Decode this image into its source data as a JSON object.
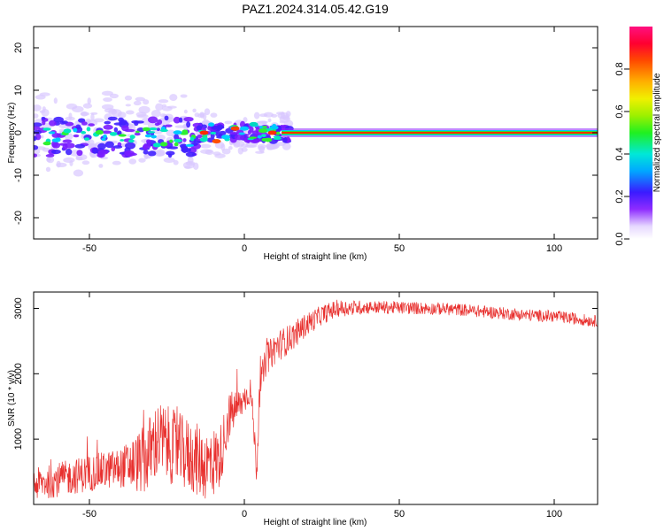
{
  "title": "PAZ1.2024.314.05.42.G19",
  "colors": {
    "snr_line": "#e8302e",
    "axis": "#000000"
  },
  "chart_data": [
    {
      "type": "heatmap",
      "xlabel": "Height of straight line (km)",
      "ylabel": "Frequency (Hz)",
      "xlim": [
        -68,
        114
      ],
      "ylim": [
        -25,
        25
      ],
      "xticks": [
        -50,
        0,
        50,
        100
      ],
      "yticks": [
        -20,
        -10,
        0,
        10,
        20
      ],
      "colormap": "rainbow (purple to red)",
      "colorbar": {
        "label": "Normalized spectral amplitude",
        "range": [
          0,
          1
        ],
        "ticks": [
          "0.0",
          "0.2",
          "0.4",
          "0.6",
          "0.8"
        ]
      },
      "description_points": {
        "ridge_center_hz": 0,
        "scatter_region_km": [
          -68,
          15
        ],
        "steady_region_km": [
          15,
          114
        ]
      }
    },
    {
      "type": "line",
      "xlabel": "Height of straight line (km)",
      "ylabel": "SNR (10 * v/v)",
      "xlim": [
        -68,
        114
      ],
      "ylim": [
        0,
        3250
      ],
      "xticks": [
        -50,
        0,
        50,
        100
      ],
      "yticks": [
        1000,
        2000,
        3000
      ],
      "series": [
        {
          "envelope": [
            [
              -68,
              300
            ],
            [
              -60,
              380
            ],
            [
              -50,
              480
            ],
            [
              -40,
              560
            ],
            [
              -32,
              680
            ],
            [
              -28,
              1000
            ],
            [
              -24,
              900
            ],
            [
              -20,
              800
            ],
            [
              -16,
              700
            ],
            [
              -12,
              600
            ],
            [
              -8,
              700
            ],
            [
              -5,
              1350
            ],
            [
              -2,
              1500
            ],
            [
              0,
              1600
            ],
            [
              2,
              1750
            ],
            [
              3,
              1200
            ],
            [
              4,
              500
            ],
            [
              5,
              1800
            ],
            [
              7,
              2200
            ],
            [
              10,
              2400
            ],
            [
              15,
              2550
            ],
            [
              20,
              2750
            ],
            [
              25,
              2900
            ],
            [
              30,
              3000
            ],
            [
              40,
              3020
            ],
            [
              50,
              3010
            ],
            [
              60,
              3000
            ],
            [
              70,
              2980
            ],
            [
              80,
              2940
            ],
            [
              90,
              2900
            ],
            [
              100,
              2880
            ],
            [
              114,
              2800
            ]
          ],
          "noise": [
            [
              -68,
              250
            ],
            [
              -40,
              300
            ],
            [
              -30,
              600
            ],
            [
              -10,
              550
            ],
            [
              0,
              200
            ],
            [
              10,
              250
            ],
            [
              25,
              150
            ],
            [
              40,
              100
            ],
            [
              114,
              90
            ]
          ]
        }
      ]
    }
  ]
}
